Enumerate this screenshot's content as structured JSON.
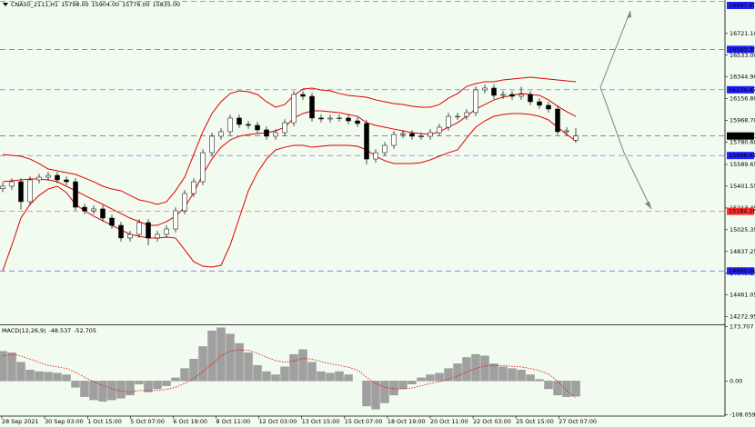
{
  "chart_data": [
    {
      "type": "candlestick",
      "title": "CNA50_2111,H1",
      "header_values": [
        {
          "value": 15798,
          "label": "15798.00"
        },
        {
          "value": 15904,
          "label": "15904.00"
        },
        {
          "value": 15776,
          "label": "15776.00"
        },
        {
          "value": 15835,
          "label": "15835.00"
        }
      ],
      "open": [
        15380,
        15401,
        15440,
        15268,
        15456,
        15479,
        15495,
        15456,
        15440,
        15220,
        15189,
        15205,
        15126,
        15063,
        14954,
        14985,
        15087,
        14954,
        14985,
        15032,
        15189,
        15338,
        15440,
        15691,
        15833,
        15872,
        15990,
        15935,
        15927,
        15888,
        15833,
        15864,
        15950,
        16194,
        16178,
        15990,
        15982,
        15990,
        15990,
        15966,
        15943,
        15636,
        15691,
        15754,
        15848,
        15856,
        15833,
        15833,
        15864,
        15911,
        16005,
        16005,
        16037,
        16233,
        16249,
        16186,
        16194,
        16178,
        16194,
        16131,
        16100,
        16068,
        15872,
        15798
      ],
      "high": [
        15431,
        15470,
        15470,
        15486,
        15509,
        15525,
        15525,
        15486,
        15470,
        15250,
        15235,
        15235,
        15156,
        15093,
        15015,
        15117,
        15117,
        15015,
        15062,
        15219,
        15368,
        15470,
        15721,
        15863,
        15902,
        16020,
        16020,
        15965,
        15957,
        15918,
        15894,
        15980,
        16224,
        16224,
        16208,
        16020,
        16020,
        16020,
        16020,
        15996,
        15973,
        15721,
        15784,
        15878,
        15886,
        15886,
        15863,
        15894,
        15941,
        16035,
        16035,
        16067,
        16263,
        16279,
        16279,
        16224,
        16224,
        16260,
        16224,
        16161,
        16130,
        16098,
        15910,
        15904
      ],
      "low": [
        15350,
        15371,
        15200,
        15238,
        15426,
        15449,
        15426,
        15410,
        15190,
        15159,
        15159,
        15096,
        15033,
        14924,
        14924,
        14955,
        14890,
        14924,
        14955,
        15002,
        15159,
        15308,
        15410,
        15661,
        15803,
        15842,
        15905,
        15897,
        15858,
        15803,
        15803,
        15834,
        15920,
        16148,
        15960,
        15952,
        15952,
        15960,
        15936,
        15913,
        15590,
        15606,
        15661,
        15724,
        15818,
        15803,
        15803,
        15803,
        15834,
        15881,
        15975,
        15975,
        16007,
        16203,
        16156,
        16156,
        16148,
        16148,
        16101,
        16070,
        16038,
        15842,
        15842,
        15776
      ],
      "close": [
        15401,
        15440,
        15268,
        15456,
        15479,
        15495,
        15456,
        15440,
        15220,
        15189,
        15205,
        15126,
        15063,
        14954,
        14985,
        15087,
        14954,
        14985,
        15032,
        15189,
        15338,
        15440,
        15691,
        15833,
        15872,
        15990,
        15935,
        15927,
        15888,
        15833,
        15864,
        15950,
        16194,
        16178,
        15990,
        15982,
        15990,
        15990,
        15966,
        15943,
        15636,
        15691,
        15754,
        15848,
        15856,
        15833,
        15833,
        15864,
        15911,
        16005,
        16005,
        16037,
        16233,
        16249,
        16186,
        16194,
        16178,
        16194,
        16131,
        16100,
        16068,
        15872,
        15880,
        15835
      ],
      "candle_colors": {
        "up": "#ffffff",
        "down": "#000000",
        "outline": "#000000"
      },
      "bands": [
        {
          "color": "#e00000",
          "values": [
            15676,
            15668,
            15660,
            15636,
            15597,
            15550,
            15534,
            15519,
            15503,
            15472,
            15440,
            15401,
            15377,
            15362,
            15322,
            15283,
            15267,
            15244,
            15267,
            15362,
            15479,
            15676,
            15872,
            16029,
            16131,
            16202,
            16225,
            16217,
            16194,
            16131,
            16084,
            16107,
            16186,
            16241,
            16249,
            16233,
            16225,
            16202,
            16186,
            16178,
            16170,
            16147,
            16131,
            16115,
            16107,
            16092,
            16084,
            16084,
            16107,
            16162,
            16202,
            16264,
            16288,
            16304,
            16304,
            16319,
            16327,
            16335,
            16343,
            16335,
            16327,
            16319,
            16311,
            16304
          ]
        },
        {
          "color": "#e00000",
          "values": [
            15440,
            15448,
            15456,
            15464,
            15464,
            15456,
            15440,
            15401,
            15362,
            15322,
            15283,
            15244,
            15205,
            15165,
            15126,
            15095,
            15063,
            15063,
            15095,
            15142,
            15220,
            15346,
            15503,
            15636,
            15738,
            15801,
            15833,
            15848,
            15856,
            15864,
            15880,
            15911,
            15990,
            16029,
            16052,
            16052,
            16045,
            16037,
            16021,
            16005,
            15950,
            15927,
            15911,
            15895,
            15880,
            15864,
            15856,
            15848,
            15872,
            15911,
            15950,
            16005,
            16068,
            16107,
            16147,
            16170,
            16186,
            16202,
            16194,
            16186,
            16147,
            16092,
            16045,
            16005
          ]
        },
        {
          "color": "#e00000",
          "values": [
            14671,
            14891,
            15126,
            15244,
            15322,
            15377,
            15401,
            15346,
            15244,
            15189,
            15142,
            15103,
            15063,
            15024,
            14985,
            14969,
            14954,
            14954,
            14961,
            14954,
            14852,
            14749,
            14710,
            14702,
            14718,
            14891,
            15126,
            15362,
            15519,
            15636,
            15715,
            15738,
            15754,
            15754,
            15738,
            15746,
            15754,
            15754,
            15754,
            15746,
            15715,
            15660,
            15621,
            15597,
            15597,
            15597,
            15605,
            15629,
            15660,
            15691,
            15715,
            15817,
            15911,
            15966,
            16005,
            16021,
            16029,
            16029,
            16021,
            16005,
            15974,
            15911,
            15848,
            15793
          ]
        }
      ],
      "levels": [
        {
          "value": 16997.6,
          "label": "16997.60",
          "color": "#2020ff"
        },
        {
          "value": 16583.36,
          "color": "#2020ff"
        },
        {
          "value": 16234.47,
          "color": "#2020ff"
        },
        {
          "value": 15835,
          "label": "15835.00",
          "color": "#000000"
        },
        {
          "value": 15666.41,
          "color": "#2020ff"
        },
        {
          "value": 15184.26,
          "color": "#ff3030"
        },
        {
          "value": 14669.06,
          "color": "#2020ff"
        }
      ],
      "ylim": [
        14200,
        17010
      ],
      "yticks": [
        {
          "value": 16721.1,
          "label": "16721.10"
        },
        {
          "value": 16533,
          "label": "16533.00"
        },
        {
          "value": 16344.9,
          "label": "16344.90"
        },
        {
          "value": 16156.8,
          "label": "16156.80"
        },
        {
          "value": 15968.7,
          "label": "15968.70"
        },
        {
          "value": 15780.6,
          "label": "15780.60"
        },
        15589.65,
        15401.55,
        15213.45,
        15025.35,
        14837.25,
        14649.15,
        14461.05,
        14272.95
      ],
      "time_labels": [
        "28 Sep 2021",
        "30 Sep 03:00",
        "1 Oct 15:00",
        "5 Oct 07:00",
        "6 Oct 19:00",
        "8 Oct 11:00",
        "12 Oct 03:00",
        "13 Oct 15:00",
        "15 Oct 07:00",
        "18 Oct 19:00",
        "20 Oct 11:00",
        "22 Oct 03:00",
        "25 Oct 15:00",
        "27 Oct 07:00"
      ]
    },
    {
      "type": "bar",
      "title": "MACD(12,26,9)",
      "header_values": [
        -48.537,
        -52.705
      ],
      "color": "#a0a0a0",
      "values": [
        95,
        90,
        60,
        35,
        30,
        28,
        25,
        20,
        -20,
        -50,
        -60,
        -65,
        -60,
        -55,
        -45,
        -10,
        -35,
        -25,
        -15,
        10,
        40,
        70,
        110,
        160,
        170,
        150,
        120,
        90,
        50,
        30,
        20,
        45,
        85,
        100,
        60,
        30,
        25,
        30,
        20,
        0,
        -80,
        -90,
        -70,
        -45,
        -25,
        -10,
        10,
        20,
        25,
        40,
        55,
        75,
        85,
        80,
        55,
        45,
        40,
        35,
        20,
        5,
        -25,
        -45,
        -50,
        -48.537
      ],
      "signal": {
        "color": "#e00000",
        "values": [
          80,
          85,
          80,
          70,
          60,
          50,
          45,
          40,
          28,
          12,
          -2,
          -15,
          -25,
          -32,
          -36,
          -30,
          -31,
          -30,
          -27,
          -20,
          -8,
          8,
          30,
          55,
          80,
          95,
          100,
          98,
          88,
          76,
          65,
          60,
          64,
          72,
          70,
          62,
          55,
          50,
          44,
          35,
          12,
          -8,
          -20,
          -25,
          -25,
          -22,
          -15,
          -8,
          -2,
          6,
          16,
          28,
          40,
          48,
          50,
          49,
          47,
          45,
          40,
          33,
          22,
          0,
          -30,
          -52.705
        ]
      },
      "ylim": [
        -112,
        178
      ],
      "yticks": [
        173.707,
        {
          "value": 0,
          "label": "0.00"
        },
        -108.059
      ]
    }
  ]
}
